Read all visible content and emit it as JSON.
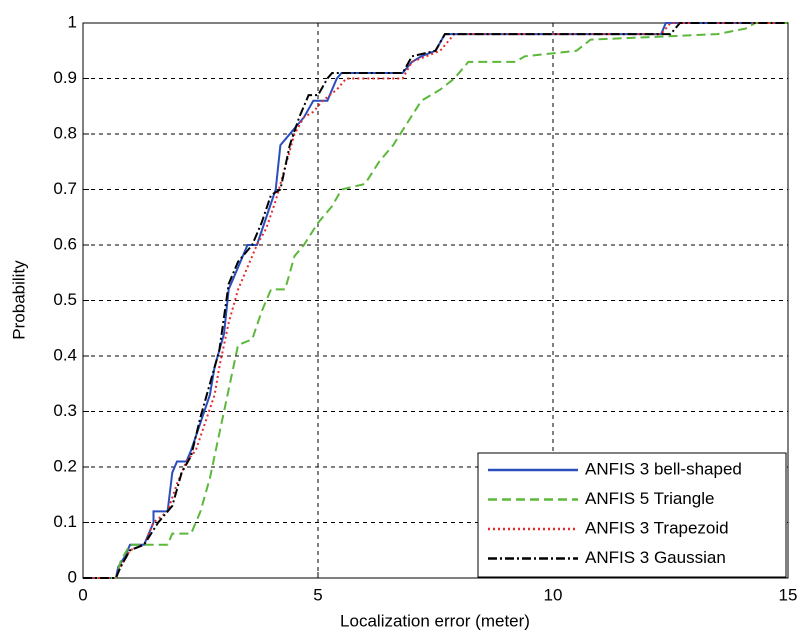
{
  "chart_data": {
    "type": "line",
    "xlabel": "Localization error (meter)",
    "ylabel": "Probability",
    "xlim": [
      0,
      15
    ],
    "xticks": [
      0,
      5,
      10,
      15
    ],
    "ylim": [
      0,
      1
    ],
    "yticks": [
      0,
      0.1,
      0.2,
      0.3,
      0.4,
      0.5,
      0.6,
      0.7,
      0.8,
      0.9,
      1
    ],
    "grid": true,
    "legend": "lower right",
    "series": [
      {
        "name": "ANFIS 3 bell-shaped",
        "color": "#2a4fbd",
        "line_style": "solid",
        "x": [
          0,
          0.7,
          0.75,
          0.9,
          1.0,
          1.3,
          1.5,
          1.5,
          1.8,
          1.9,
          2.0,
          2.2,
          2.3,
          2.5,
          2.7,
          2.8,
          3.0,
          3.1,
          3.3,
          3.5,
          3.7,
          3.9,
          4.1,
          4.2,
          4.3,
          4.5,
          4.7,
          4.9,
          5.2,
          5.4,
          5.5,
          6.8,
          7.0,
          7.2,
          7.5,
          7.7,
          12.3,
          12.4,
          15
        ],
        "values": [
          0,
          0,
          0.02,
          0.04,
          0.06,
          0.06,
          0.1,
          0.12,
          0.12,
          0.19,
          0.21,
          0.21,
          0.23,
          0.28,
          0.33,
          0.38,
          0.44,
          0.52,
          0.56,
          0.6,
          0.6,
          0.65,
          0.7,
          0.78,
          0.79,
          0.81,
          0.83,
          0.86,
          0.86,
          0.9,
          0.91,
          0.91,
          0.93,
          0.94,
          0.95,
          0.98,
          0.98,
          1.0,
          1.0
        ]
      },
      {
        "name": "ANFIS 5 Triangle",
        "color": "#5cb83a",
        "line_style": "dashed",
        "x": [
          0,
          0.7,
          0.8,
          1.0,
          1.8,
          1.9,
          2.3,
          2.5,
          2.7,
          2.9,
          3.1,
          3.3,
          3.6,
          3.8,
          4.0,
          4.3,
          4.5,
          4.7,
          5.0,
          5.3,
          5.5,
          6.0,
          6.3,
          6.6,
          6.9,
          7.2,
          7.6,
          7.9,
          8.2,
          9.2,
          9.4,
          10.5,
          10.8,
          13.5,
          14.1,
          14.3,
          15
        ],
        "values": [
          0,
          0,
          0.03,
          0.06,
          0.06,
          0.08,
          0.08,
          0.12,
          0.18,
          0.26,
          0.34,
          0.42,
          0.43,
          0.48,
          0.52,
          0.52,
          0.58,
          0.6,
          0.64,
          0.67,
          0.7,
          0.71,
          0.75,
          0.78,
          0.82,
          0.86,
          0.88,
          0.9,
          0.93,
          0.93,
          0.94,
          0.95,
          0.97,
          0.98,
          0.99,
          1.0,
          1.0
        ]
      },
      {
        "name": "ANFIS 3 Trapezoid",
        "color": "#e8292b",
        "line_style": "dotted",
        "x": [
          0,
          0.7,
          0.8,
          1.0,
          1.3,
          1.5,
          1.8,
          2.0,
          2.2,
          2.4,
          2.6,
          2.8,
          2.9,
          3.1,
          3.3,
          3.5,
          3.7,
          3.9,
          4.1,
          4.3,
          4.5,
          4.7,
          4.9,
          5.1,
          5.4,
          5.6,
          6.8,
          7.0,
          7.3,
          7.6,
          7.9,
          12.3,
          12.5,
          15
        ],
        "values": [
          0,
          0,
          0.02,
          0.05,
          0.06,
          0.1,
          0.12,
          0.17,
          0.21,
          0.23,
          0.28,
          0.33,
          0.38,
          0.46,
          0.52,
          0.56,
          0.6,
          0.63,
          0.68,
          0.74,
          0.8,
          0.83,
          0.84,
          0.86,
          0.88,
          0.9,
          0.9,
          0.93,
          0.94,
          0.95,
          0.98,
          0.98,
          1.0,
          1.0
        ]
      },
      {
        "name": "ANFIS 3 Gaussian",
        "color": "#000000",
        "line_style": "dashdot",
        "x": [
          0,
          0.7,
          0.8,
          1.0,
          1.3,
          1.6,
          1.9,
          2.1,
          2.3,
          2.5,
          2.7,
          2.9,
          3.1,
          3.3,
          3.6,
          3.8,
          4.0,
          4.2,
          4.4,
          4.6,
          4.8,
          5.0,
          5.2,
          5.3,
          6.8,
          7.0,
          7.5,
          7.7,
          12.5,
          12.7,
          15
        ],
        "values": [
          0,
          0,
          0.02,
          0.05,
          0.06,
          0.1,
          0.13,
          0.19,
          0.22,
          0.29,
          0.35,
          0.41,
          0.53,
          0.57,
          0.6,
          0.64,
          0.69,
          0.7,
          0.78,
          0.83,
          0.87,
          0.87,
          0.9,
          0.91,
          0.91,
          0.94,
          0.95,
          0.98,
          0.98,
          1.0,
          1.0
        ]
      }
    ]
  }
}
